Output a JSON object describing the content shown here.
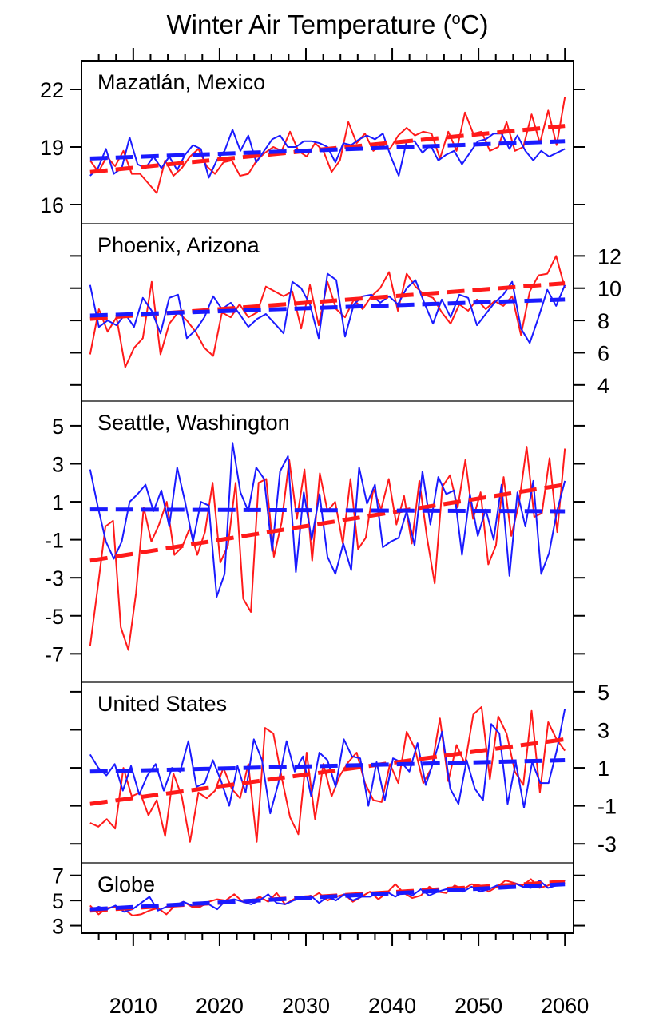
{
  "chart_data": {
    "type": "line",
    "title": "Winter Air Temperature (",
    "title_sup": "o",
    "title_tail": "C)",
    "x_ticks": [
      2010,
      2020,
      2030,
      2040,
      2050,
      2060
    ],
    "xlim": [
      2004,
      2061
    ],
    "colors": {
      "red": "#ff1a1a",
      "blue": "#1a1aff"
    },
    "panels": [
      {
        "label": "Mazatlán, Mexico",
        "ylim": [
          15,
          23.5
        ],
        "y_ticks": [
          16,
          19,
          22
        ],
        "tick_side": "left",
        "series": [
          {
            "color": "red",
            "x_start": 2005,
            "values": [
              18.3,
              17.7,
              18.5,
              18.0,
              18.8,
              17.6,
              17.6,
              17.1,
              16.6,
              18.3,
              17.5,
              17.9,
              18.5,
              18.9,
              18.0,
              17.6,
              18.2,
              18.3,
              17.5,
              17.6,
              18.3,
              18.7,
              19.0,
              18.8,
              19.8,
              18.8,
              18.5,
              19.2,
              18.8,
              17.7,
              18.3,
              20.3,
              19.2,
              19.7,
              18.8,
              19.1,
              18.9,
              19.6,
              20.0,
              19.6,
              19.8,
              19.7,
              18.4,
              19.8,
              18.8,
              20.8,
              19.7,
              19.8,
              18.8,
              19.0,
              20.3,
              18.8,
              19.0,
              20.7,
              19.2,
              20.9,
              19.1,
              21.6
            ]
          },
          {
            "color": "blue",
            "x_start": 2005,
            "values": [
              17.5,
              17.9,
              18.9,
              17.6,
              17.9,
              19.5,
              18.1,
              17.9,
              18.5,
              17.9,
              18.5,
              17.8,
              18.6,
              19.1,
              18.9,
              17.4,
              18.3,
              18.8,
              19.9,
              18.8,
              19.6,
              18.2,
              18.8,
              19.4,
              19.6,
              19.0,
              19.0,
              19.3,
              19.3,
              19.2,
              19.0,
              18.2,
              19.2,
              19.1,
              19.4,
              19.6,
              19.4,
              19.7,
              18.5,
              17.5,
              19.3,
              19.3,
              18.7,
              19.1,
              18.3,
              18.6,
              18.8,
              18.1,
              18.7,
              19.3,
              19.4,
              19.7,
              19.7,
              18.9,
              19.6,
              18.8,
              18.3,
              18.8,
              18.5,
              18.7,
              18.9
            ]
          },
          {
            "color": "red",
            "trend": [
              17.7,
              20.1
            ]
          },
          {
            "color": "blue",
            "trend": [
              18.4,
              19.3
            ]
          }
        ]
      },
      {
        "label": "Phoenix, Arizona",
        "ylim": [
          3,
          14
        ],
        "y_ticks": [
          4,
          6,
          8,
          10,
          12
        ],
        "tick_side": "right",
        "series": [
          {
            "color": "red",
            "x_start": 2005,
            "values": [
              5.9,
              8.7,
              7.3,
              8.2,
              5.1,
              6.3,
              6.9,
              10.4,
              5.9,
              7.8,
              8.5,
              8.0,
              7.3,
              6.3,
              5.8,
              8.5,
              8.2,
              9.0,
              8.2,
              8.5,
              10.1,
              9.8,
              9.5,
              9.8,
              7.5,
              10.2,
              7.7,
              10.4,
              8.7,
              8.2,
              9.3,
              8.7,
              9.5,
              10.0,
              11.0,
              8.6,
              10.9,
              10.1,
              9.6,
              9.4,
              8.5,
              7.8,
              9.0,
              8.6,
              9.3,
              8.7,
              9.2,
              8.9,
              9.5,
              7.1,
              9.8,
              10.8,
              10.9,
              12.0,
              10.0
            ]
          },
          {
            "color": "blue",
            "x_start": 2005,
            "values": [
              10.2,
              7.6,
              8.0,
              7.7,
              8.4,
              7.6,
              9.4,
              8.6,
              7.2,
              9.4,
              9.6,
              6.9,
              7.4,
              8.2,
              9.5,
              8.7,
              9.1,
              8.4,
              7.6,
              8.1,
              8.4,
              7.8,
              7.2,
              10.4,
              10.0,
              9.0,
              6.9,
              10.9,
              10.5,
              7.0,
              9.0,
              9.5,
              9.6,
              9.1,
              9.5,
              9.0,
              10.0,
              10.5,
              9.1,
              7.8,
              9.3,
              8.2,
              9.6,
              9.4,
              7.7,
              8.4,
              9.1,
              9.6,
              10.4,
              7.5,
              6.6,
              8.2,
              9.9,
              8.9,
              10.2
            ]
          },
          {
            "color": "red",
            "trend": [
              8.1,
              10.3
            ]
          },
          {
            "color": "blue",
            "trend": [
              8.3,
              9.3
            ]
          }
        ]
      },
      {
        "label": "Seattle, Washington",
        "ylim": [
          -8.5,
          6.3
        ],
        "y_ticks": [
          -7,
          -5,
          -3,
          -1,
          1,
          3,
          5
        ],
        "tick_side": "left",
        "series": [
          {
            "color": "red",
            "x_start": 2005,
            "values": [
              -6.6,
              -3.5,
              -0.3,
              0.0,
              -5.6,
              -6.8,
              -3.8,
              0.7,
              -1.1,
              -0.2,
              1.0,
              -1.8,
              -1.4,
              -0.4,
              -1.8,
              -0.6,
              2.0,
              -2.2,
              -1.3,
              2.0,
              -4.1,
              -4.8,
              2.0,
              2.2,
              -1.9,
              -0.1,
              3.2,
              0.1,
              2.7,
              -2.1,
              2.5,
              0.5,
              1.0,
              -1.2,
              2.2,
              -1.5,
              -0.9,
              1.7,
              0.6,
              2.2,
              -0.2,
              1.3,
              -1.2,
              2.1,
              -0.9,
              -3.3,
              1.8,
              2.4,
              0.7,
              3.2,
              0.1,
              1.5,
              -2.3,
              -1.3,
              2.3,
              -0.8,
              0.9,
              3.9,
              0.2,
              0.4,
              3.3,
              -0.6,
              3.8
            ]
          },
          {
            "color": "blue",
            "x_start": 2005,
            "values": [
              2.7,
              0.7,
              -1.1,
              -2.0,
              -1.1,
              1.0,
              1.4,
              1.9,
              0.5,
              1.6,
              -0.3,
              2.8,
              1.0,
              -1.1,
              1.0,
              0.8,
              -4.0,
              -2.8,
              4.1,
              1.5,
              0.5,
              2.8,
              2.2,
              -1.6,
              2.6,
              3.4,
              -2.7,
              1.5,
              -1.0,
              1.4,
              -1.9,
              -2.8,
              -1.2,
              -2.6,
              2.8,
              0.9,
              1.9,
              -1.4,
              -1.1,
              -0.9,
              0.5,
              -1.3,
              2.6,
              -0.2,
              2.3,
              1.4,
              1.6,
              -1.8,
              1.4,
              -0.8,
              0.6,
              -1.0,
              1.9,
              -2.9,
              1.5,
              -0.3,
              2.1,
              -2.8,
              -1.7,
              0.5,
              2.1
            ]
          },
          {
            "color": "red",
            "trend": [
              -2.1,
              1.9
            ]
          },
          {
            "color": "blue",
            "trend": [
              0.6,
              0.5
            ]
          }
        ]
      },
      {
        "label": "United States",
        "ylim": [
          -4,
          5.5
        ],
        "y_ticks": [
          -3,
          -1,
          1,
          3,
          5
        ],
        "tick_side": "right",
        "series": [
          {
            "color": "red",
            "x_start": 2005,
            "values": [
              -1.9,
              -2.1,
              -1.7,
              -2.2,
              1.0,
              -0.5,
              -0.3,
              -1.5,
              -0.7,
              -2.6,
              0.7,
              -0.5,
              -2.9,
              -0.3,
              -0.6,
              -0.2,
              1.0,
              -0.1,
              -0.6,
              1.2,
              -2.9,
              3.1,
              2.8,
              0.5,
              -1.6,
              -2.5,
              1.8,
              -1.7,
              1.2,
              -0.5,
              0.6,
              1.3,
              1.8,
              0.2,
              -0.7,
              -0.8,
              1.2,
              0.2,
              2.9,
              2.0,
              0.2,
              1.0,
              3.6,
              0.3,
              2.2,
              1.2,
              3.8,
              4.2,
              0.4,
              3.7,
              2.8,
              0.8,
              0.1,
              4.0,
              -0.3,
              3.4,
              2.5,
              1.9
            ]
          },
          {
            "color": "blue",
            "x_start": 2005,
            "values": [
              1.7,
              1.0,
              0.6,
              1.2,
              -0.2,
              1.1,
              -0.4,
              0.6,
              1.2,
              -0.2,
              1.0,
              0.8,
              2.4,
              0.0,
              0.2,
              1.4,
              0.3,
              -1.0,
              1.1,
              -0.3,
              2.5,
              1.4,
              -1.4,
              0.2,
              2.4,
              0.8,
              1.6,
              -0.5,
              1.8,
              1.4,
              0.0,
              2.5,
              1.6,
              1.5,
              -1.0,
              1.3,
              -0.7,
              1.5,
              1.3,
              0.8,
              2.3,
              0.1,
              1.4,
              2.9,
              -0.1,
              -0.9,
              1.4,
              -0.1,
              -0.7,
              3.3,
              2.8,
              -0.9,
              1.3,
              -1.1,
              1.3,
              0.2,
              0.2,
              1.9,
              4.1
            ]
          },
          {
            "color": "red",
            "trend": [
              -0.9,
              2.5
            ]
          },
          {
            "color": "blue",
            "trend": [
              0.8,
              1.4
            ]
          }
        ]
      },
      {
        "label": "Globe",
        "ylim": [
          2.4,
          8.0
        ],
        "y_ticks": [
          3,
          5,
          7
        ],
        "tick_side": "left",
        "series": [
          {
            "color": "red",
            "x_start": 2005,
            "values": [
              4.6,
              3.9,
              4.4,
              4.5,
              4.3,
              3.8,
              3.9,
              4.2,
              4.4,
              3.9,
              4.6,
              4.9,
              4.5,
              4.5,
              4.9,
              5.1,
              5.0,
              5.5,
              4.9,
              4.9,
              5.3,
              4.9,
              5.6,
              4.7,
              5.1,
              5.3,
              5.2,
              5.6,
              5.0,
              5.3,
              5.5,
              4.9,
              5.3,
              5.7,
              5.1,
              5.6,
              6.3,
              5.6,
              5.2,
              5.4,
              6.1,
              5.7,
              5.6,
              6.2,
              5.9,
              6.3,
              6.2,
              5.7,
              6.1,
              6.6,
              6.4,
              6.2,
              6.7,
              6.0,
              6.2,
              6.5,
              6.3
            ]
          },
          {
            "color": "blue",
            "x_start": 2005,
            "values": [
              4.2,
              4.5,
              4.3,
              4.6,
              4.1,
              4.3,
              4.8,
              5.3,
              4.2,
              4.5,
              4.6,
              4.9,
              4.6,
              4.6,
              4.7,
              4.3,
              5.0,
              5.1,
              4.9,
              4.7,
              5.0,
              5.5,
              4.8,
              4.7,
              5.0,
              5.2,
              5.4,
              4.8,
              5.3,
              5.0,
              5.5,
              5.0,
              5.3,
              5.3,
              5.6,
              5.7,
              5.3,
              5.7,
              5.4,
              5.9,
              5.4,
              5.7,
              5.9,
              6.1,
              5.7,
              6.1,
              5.7,
              5.9,
              6.2,
              6.0,
              6.4,
              6.1,
              6.0,
              6.6,
              6.0,
              6.2,
              6.6
            ]
          },
          {
            "color": "red",
            "trend": [
              4.2,
              6.5
            ]
          },
          {
            "color": "blue",
            "trend": [
              4.3,
              6.3
            ]
          }
        ]
      }
    ]
  }
}
